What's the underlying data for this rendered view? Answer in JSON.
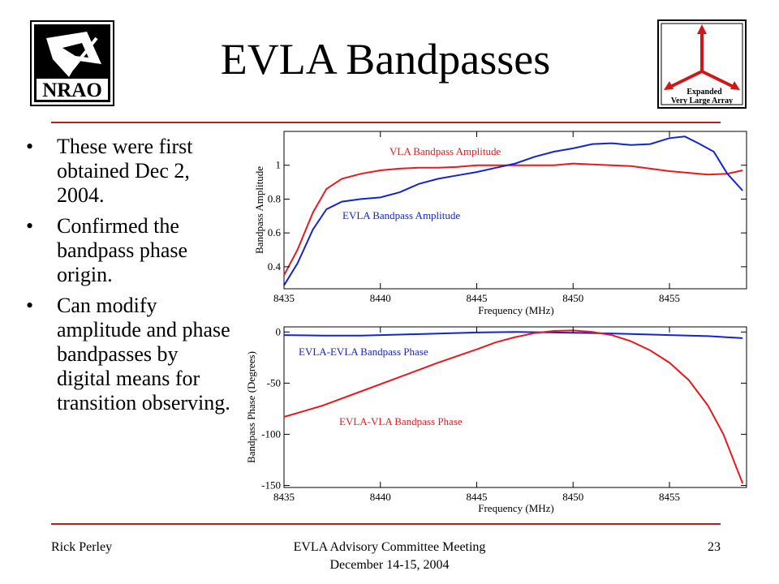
{
  "slide": {
    "title": "EVLA Bandpasses",
    "bullets": [
      "These were first obtained Dec 2, 2004.",
      "Confirmed the bandpass phase origin.",
      "Can modify amplitude and phase bandpasses by digital means for transition observing."
    ],
    "footer": {
      "left": "Rick Perley",
      "center_line1": "EVLA Advisory Committee Meeting",
      "center_line2": "December 14-15, 2004",
      "right": "23"
    }
  },
  "logos": {
    "nrao_text": "NRAO",
    "evla_text": [
      "Expanded",
      "Very Large Array"
    ]
  },
  "colors": {
    "accent": "#b0202a",
    "red": "#e8191f",
    "blue": "#1424d0"
  },
  "chart_data": [
    {
      "type": "line",
      "xlabel": "Frequency (MHz)",
      "ylabel": "Bandpass Amplitude",
      "xlim": [
        8435,
        8459
      ],
      "ylim": [
        0.27,
        1.2
      ],
      "xticks": [
        8435,
        8440,
        8445,
        8450,
        8455
      ],
      "yticks": [
        0.4,
        0.6,
        0.8,
        1
      ],
      "grid": false,
      "series": [
        {
          "name": "VLA Bandpass Amplitude",
          "color": "#e8191f",
          "x": [
            8435,
            8435.7,
            8436.5,
            8437.2,
            8438,
            8439,
            8440,
            8441,
            8442,
            8443,
            8444,
            8445,
            8446,
            8447,
            8448,
            8449,
            8450,
            8451,
            8452,
            8453,
            8454,
            8455,
            8456,
            8457,
            8458,
            8458.8
          ],
          "values": [
            0.35,
            0.5,
            0.72,
            0.86,
            0.92,
            0.95,
            0.97,
            0.98,
            0.985,
            0.985,
            0.99,
            1.0,
            1.0,
            1.0,
            1.0,
            1.0,
            1.01,
            1.005,
            1.0,
            0.995,
            0.98,
            0.965,
            0.955,
            0.945,
            0.95,
            0.97
          ]
        },
        {
          "name": "EVLA Bandpass Amplitude",
          "color": "#1424d0",
          "x": [
            8435,
            8435.7,
            8436.5,
            8437.2,
            8438,
            8439,
            8440,
            8441,
            8442,
            8443,
            8444,
            8445,
            8446,
            8447,
            8448,
            8449,
            8450,
            8451,
            8452,
            8453,
            8454,
            8455,
            8455.8,
            8456.5,
            8457.3,
            8458,
            8458.8
          ],
          "values": [
            0.29,
            0.42,
            0.62,
            0.74,
            0.785,
            0.8,
            0.81,
            0.84,
            0.89,
            0.92,
            0.94,
            0.96,
            0.985,
            1.01,
            1.05,
            1.08,
            1.1,
            1.125,
            1.13,
            1.12,
            1.125,
            1.16,
            1.17,
            1.13,
            1.08,
            0.95,
            0.85
          ]
        }
      ]
    },
    {
      "type": "line",
      "xlabel": "Frequency (MHz)",
      "ylabel": "Bandpass Phase (Degrees)",
      "xlim": [
        8435,
        8459
      ],
      "ylim": [
        -152,
        5
      ],
      "xticks": [
        8435,
        8440,
        8445,
        8450,
        8455
      ],
      "yticks": [
        0,
        -50,
        -100,
        -150
      ],
      "grid": false,
      "series": [
        {
          "name": "EVLA-EVLA Bandpass Phase",
          "color": "#1424d0",
          "x": [
            8435,
            8437,
            8439,
            8441,
            8443,
            8445,
            8447,
            8449,
            8451,
            8453,
            8455,
            8457,
            8458.8
          ],
          "values": [
            -3,
            -3.5,
            -3.5,
            -2.5,
            -1.5,
            -0.5,
            0,
            -0.5,
            -1,
            -2,
            -3,
            -4,
            -6
          ]
        },
        {
          "name": "EVLA-VLA Bandpass Phase",
          "color": "#e8191f",
          "x": [
            8435,
            8437,
            8439,
            8441,
            8443,
            8445,
            8446,
            8447,
            8448,
            8449,
            8450,
            8451,
            8452,
            8453,
            8454,
            8455,
            8456,
            8457,
            8457.8,
            8458.8
          ],
          "values": [
            -83,
            -72,
            -58,
            -44,
            -30,
            -17,
            -10,
            -5,
            -1,
            1,
            1.5,
            0,
            -3,
            -9,
            -18,
            -30,
            -47,
            -72,
            -100,
            -148
          ]
        }
      ]
    }
  ]
}
